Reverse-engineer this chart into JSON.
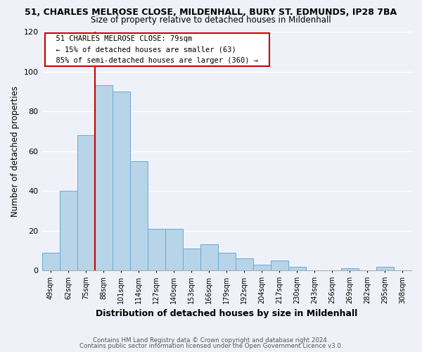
{
  "title_line1": "51, CHARLES MELROSE CLOSE, MILDENHALL, BURY ST. EDMUNDS, IP28 7BA",
  "title_line2": "Size of property relative to detached houses in Mildenhall",
  "xlabel": "Distribution of detached houses by size in Mildenhall",
  "ylabel": "Number of detached properties",
  "bin_labels": [
    "49sqm",
    "62sqm",
    "75sqm",
    "88sqm",
    "101sqm",
    "114sqm",
    "127sqm",
    "140sqm",
    "153sqm",
    "166sqm",
    "179sqm",
    "192sqm",
    "204sqm",
    "217sqm",
    "230sqm",
    "243sqm",
    "256sqm",
    "269sqm",
    "282sqm",
    "295sqm",
    "308sqm"
  ],
  "bar_heights": [
    9,
    40,
    68,
    93,
    90,
    55,
    21,
    21,
    11,
    13,
    9,
    6,
    3,
    5,
    2,
    0,
    0,
    1,
    0,
    2,
    0
  ],
  "bar_color": "#b8d4e8",
  "bar_edge_color": "#6aaad4",
  "vline_x_index": 2,
  "vline_color": "#cc0000",
  "ylim": [
    0,
    120
  ],
  "yticks": [
    0,
    20,
    40,
    60,
    80,
    100,
    120
  ],
  "annotation_title": "51 CHARLES MELROSE CLOSE: 79sqm",
  "annotation_line1": "← 15% of detached houses are smaller (63)",
  "annotation_line2": "85% of semi-detached houses are larger (360) →",
  "annotation_box_color": "#ffffff",
  "annotation_box_edge": "#cc0000",
  "footnote1": "Contains HM Land Registry data © Crown copyright and database right 2024.",
  "footnote2": "Contains public sector information licensed under the Open Government Licence v3.0.",
  "background_color": "#eef2f8",
  "grid_color": "#ffffff"
}
